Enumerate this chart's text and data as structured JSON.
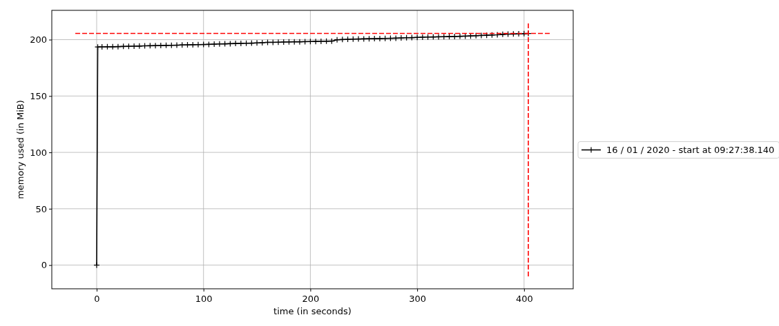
{
  "chart_data": {
    "type": "line",
    "xlabel": "time (in seconds)",
    "ylabel": "memory used (in MiB)",
    "xlim": [
      -42,
      446
    ],
    "ylim": [
      -21,
      226
    ],
    "xticks": [
      0,
      100,
      200,
      300,
      400
    ],
    "yticks": [
      0,
      50,
      100,
      150,
      200
    ],
    "grid": true,
    "legend": "right",
    "marker": "cross",
    "line_style": "solid",
    "series": [
      {
        "name": "16 / 01 / 2020 - start at 09:27:38.140",
        "color": "#000000",
        "x": [
          0,
          1,
          5,
          10,
          15,
          20,
          25,
          30,
          35,
          40,
          45,
          50,
          55,
          60,
          65,
          70,
          75,
          80,
          85,
          90,
          95,
          100,
          105,
          110,
          115,
          120,
          125,
          130,
          135,
          140,
          145,
          150,
          155,
          160,
          165,
          170,
          175,
          180,
          185,
          190,
          195,
          200,
          205,
          210,
          215,
          220,
          225,
          230,
          235,
          240,
          245,
          250,
          255,
          260,
          265,
          270,
          275,
          280,
          285,
          290,
          295,
          300,
          305,
          310,
          315,
          320,
          325,
          330,
          335,
          340,
          345,
          350,
          355,
          360,
          365,
          370,
          375,
          380,
          385,
          390,
          395,
          400,
          404
        ],
        "values": [
          0,
          193.5,
          193.6,
          193.7,
          193.7,
          193.8,
          194.0,
          194.1,
          194.2,
          194.3,
          194.5,
          194.6,
          194.7,
          194.8,
          194.9,
          195.0,
          195.1,
          195.3,
          195.4,
          195.5,
          195.6,
          195.7,
          195.8,
          196.0,
          196.2,
          196.3,
          196.4,
          196.6,
          196.7,
          196.8,
          196.9,
          197.1,
          197.3,
          197.6,
          197.6,
          197.7,
          197.9,
          198.0,
          198.1,
          198.1,
          198.2,
          198.3,
          198.4,
          198.5,
          198.6,
          198.7,
          199.9,
          200.1,
          200.3,
          200.5,
          200.6,
          200.7,
          200.8,
          200.9,
          201.0,
          201.1,
          201.2,
          201.3,
          201.5,
          201.7,
          201.8,
          202.0,
          202.2,
          202.3,
          202.4,
          202.5,
          202.6,
          202.7,
          202.8,
          203.0,
          203.1,
          203.3,
          203.5,
          203.7,
          203.9,
          204.1,
          204.3,
          204.7,
          204.9,
          205.0,
          205.2,
          205.3,
          205.5
        ]
      },
      {
        "color": "#ff0000",
        "marker": "none",
        "line_style": "dashed",
        "x": [
          -20,
          425
        ],
        "values": [
          205.5,
          205.5
        ]
      },
      {
        "color": "#ff0000",
        "marker": "none",
        "line_style": "dashed",
        "x": [
          404,
          404
        ],
        "values": [
          -10,
          215
        ]
      }
    ]
  }
}
